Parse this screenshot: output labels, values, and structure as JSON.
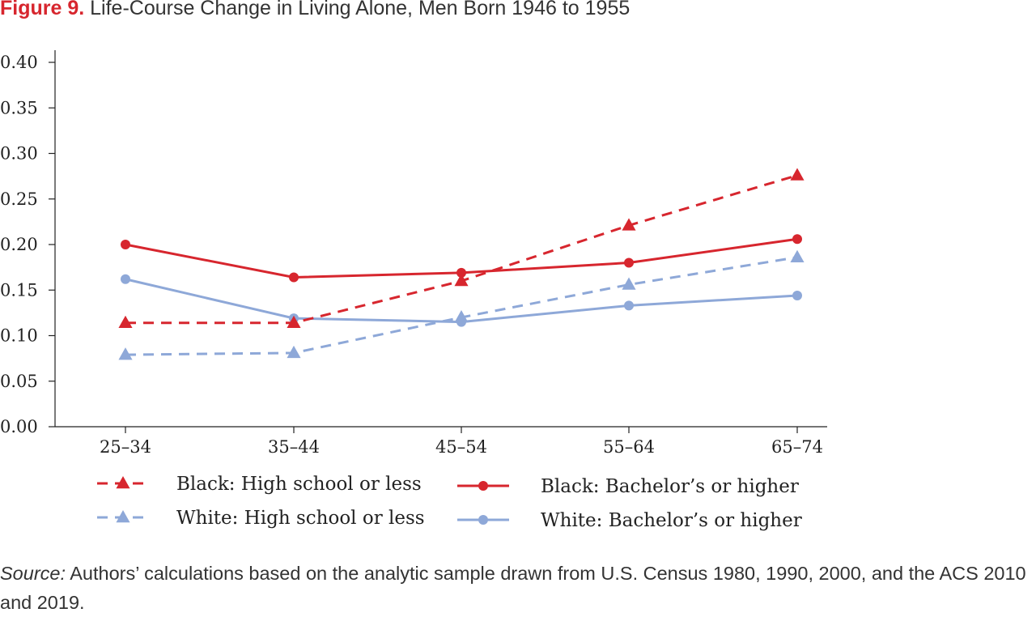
{
  "figure": {
    "number": "Figure 9.",
    "title": "Life-Course Change in Living Alone, Men Born 1946 to 1955"
  },
  "source": {
    "label": "Source:",
    "text": "Authors’ calculations based on the analytic sample drawn from U.S. Census 1980, 1990, 2000, and the ACS 2010 and 2019."
  },
  "chart_data": {
    "type": "line",
    "categories": [
      "25–34",
      "35–44",
      "45–54",
      "55–64",
      "65–74"
    ],
    "yticks": [
      "0.00",
      "0.05",
      "0.10",
      "0.15",
      "0.20",
      "0.25",
      "0.30",
      "0.35",
      "0.40"
    ],
    "ylim": [
      0,
      0.4
    ],
    "grid": false,
    "legend_position": "bottom",
    "series": [
      {
        "name": "Black: High school or less",
        "values": [
          0.114,
          0.114,
          0.16,
          0.221,
          0.276
        ],
        "color": "#d7262e",
        "dashed": true,
        "marker": "triangle"
      },
      {
        "name": "Black: Bachelor’s or higher",
        "values": [
          0.2,
          0.164,
          0.169,
          0.18,
          0.206
        ],
        "color": "#d7262e",
        "dashed": false,
        "marker": "circle"
      },
      {
        "name": "White: High school or less",
        "values": [
          0.079,
          0.081,
          0.12,
          0.156,
          0.186
        ],
        "color": "#8ea8d8",
        "dashed": true,
        "marker": "triangle"
      },
      {
        "name": "White: Bachelor’s or higher",
        "values": [
          0.162,
          0.119,
          0.115,
          0.133,
          0.144
        ],
        "color": "#8ea8d8",
        "dashed": false,
        "marker": "circle"
      }
    ]
  }
}
